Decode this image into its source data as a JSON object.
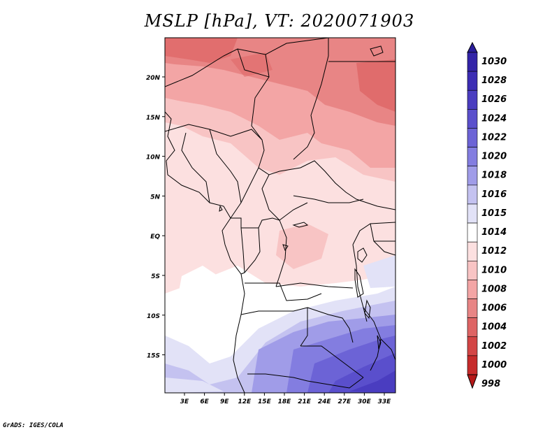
{
  "title": "MSLP [hPa], VT: 2020071903",
  "credit": "GrADS: IGES/COLA",
  "map": {
    "lat_labels": [
      "20N",
      "15N",
      "10N",
      "5N",
      "EQ",
      "5S",
      "10S",
      "15S"
    ],
    "lon_labels": [
      "3E",
      "6E",
      "9E",
      "12E",
      "15E",
      "18E",
      "21E",
      "24E",
      "27E",
      "30E",
      "33E"
    ]
  },
  "colorbar": {
    "levels": [
      "1030",
      "1028",
      "1026",
      "1024",
      "1022",
      "1020",
      "1018",
      "1016",
      "1015",
      "1014",
      "1012",
      "1010",
      "1008",
      "1006",
      "1004",
      "1002",
      "1000",
      "998"
    ],
    "colors": [
      "#2a1d9c",
      "#3324a8",
      "#3c2db4",
      "#4a3dc0",
      "#5a4fcc",
      "#6c63d6",
      "#837de0",
      "#a09ce8",
      "#c4c2f0",
      "#e2e2f7",
      "#ffffff",
      "#fce0e0",
      "#f8c4c4",
      "#f3a5a5",
      "#e88585",
      "#de6464",
      "#d34545",
      "#c62b2b",
      "#b51818"
    ]
  }
}
